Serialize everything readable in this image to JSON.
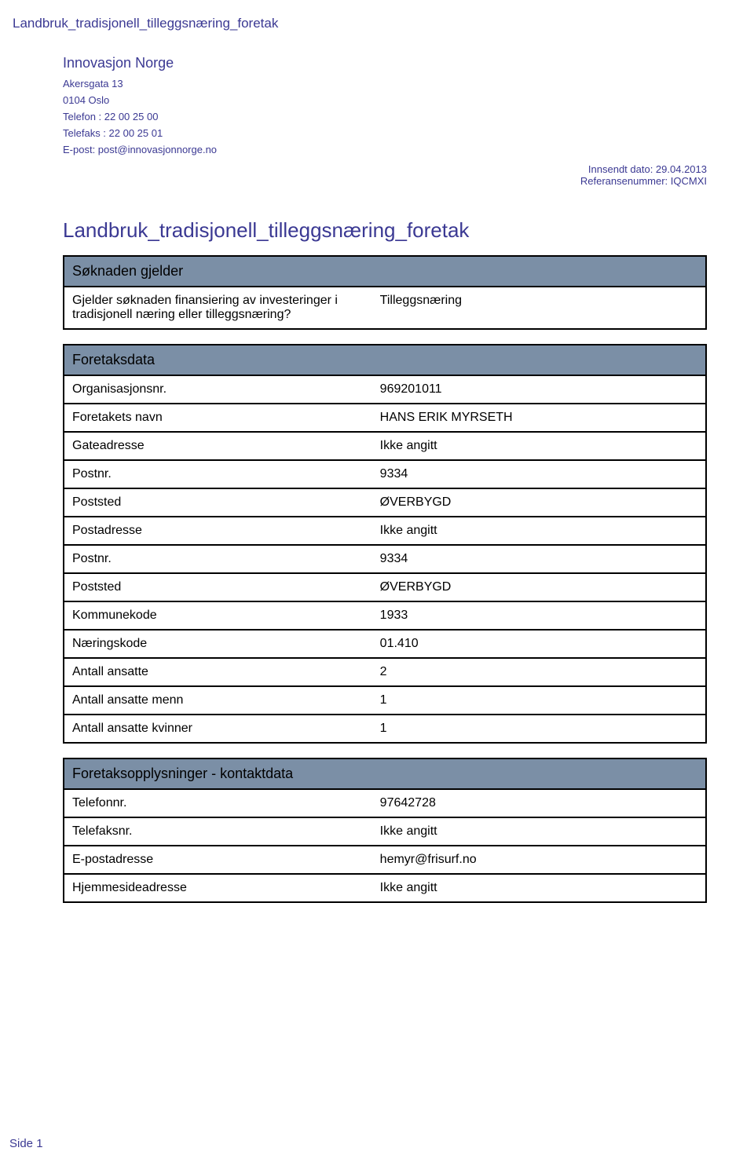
{
  "colors": {
    "text_primary": "#3b3993",
    "section_header_bg": "#7b8fa6",
    "border": "#000000",
    "body_text": "#000000",
    "page_bg": "#ffffff"
  },
  "header": {
    "doc_title": "Landbruk_tradisjonell_tilleggsnæring_foretak"
  },
  "org": {
    "name": "Innovasjon Norge",
    "address1": "Akersgata 13",
    "address2": "0104 Oslo",
    "phone": "Telefon : 22 00 25 00",
    "fax": "Telefaks : 22 00 25 01",
    "email": "E-post: post@innovasjonnorge.no"
  },
  "meta": {
    "sent_date": "Innsendt dato: 29.04.2013",
    "reference": "Referansenummer: IQCMXI"
  },
  "main_title": "Landbruk_tradisjonell_tilleggsnæring_foretak",
  "sections": {
    "soknaden": {
      "title": "Søknaden gjelder",
      "rows": [
        {
          "key": "Gjelder søknaden finansiering av investeringer i tradisjonell næring eller tilleggsnæring?",
          "val": "Tilleggsnæring"
        }
      ]
    },
    "foretaksdata": {
      "title": "Foretaksdata",
      "rows": [
        {
          "key": "Organisasjonsnr.",
          "val": "969201011"
        },
        {
          "key": "Foretakets navn",
          "val": "HANS ERIK MYRSETH"
        },
        {
          "key": "Gateadresse",
          "val": "Ikke angitt"
        },
        {
          "key": "Postnr.",
          "val": "9334"
        },
        {
          "key": "Poststed",
          "val": "ØVERBYGD"
        },
        {
          "key": "Postadresse",
          "val": "Ikke angitt"
        },
        {
          "key": "Postnr.",
          "val": "9334"
        },
        {
          "key": "Poststed",
          "val": "ØVERBYGD"
        },
        {
          "key": "Kommunekode",
          "val": "1933"
        },
        {
          "key": "Næringskode",
          "val": "01.410"
        },
        {
          "key": "Antall ansatte",
          "val": "2"
        },
        {
          "key": "Antall ansatte menn",
          "val": "1"
        },
        {
          "key": "Antall ansatte kvinner",
          "val": "1"
        }
      ]
    },
    "kontakt": {
      "title": "Foretaksopplysninger - kontaktdata",
      "rows": [
        {
          "key": "Telefonnr.",
          "val": "97642728"
        },
        {
          "key": "Telefaksnr.",
          "val": "Ikke angitt"
        },
        {
          "key": "E-postadresse",
          "val": "hemyr@frisurf.no"
        },
        {
          "key": "Hjemmesideadresse",
          "val": "Ikke angitt"
        }
      ]
    }
  },
  "footer": {
    "page": "Side 1"
  }
}
